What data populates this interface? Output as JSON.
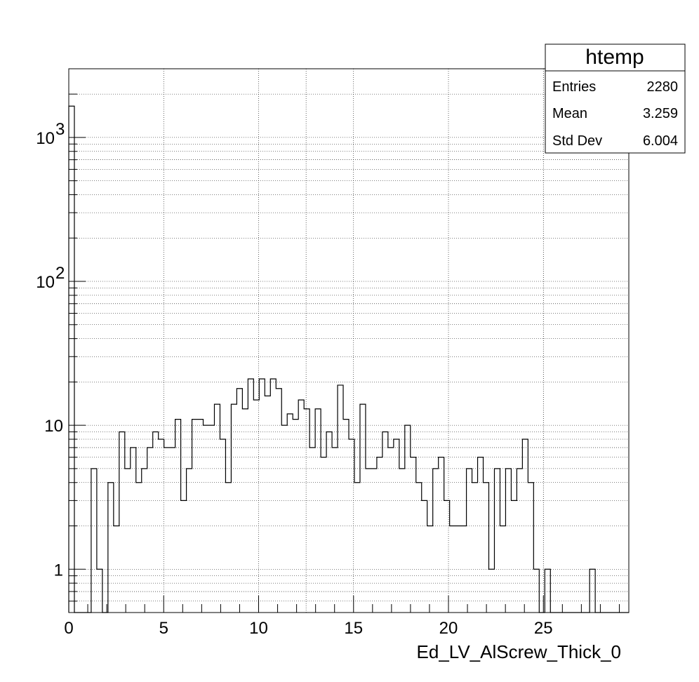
{
  "chart_data": {
    "type": "bar",
    "style": "step-histogram",
    "xlabel": "Ed_LV_AlScrew_Thick_0",
    "ylabel": "",
    "xlim": [
      0,
      29.5
    ],
    "ylim": [
      0.5,
      3000
    ],
    "log_y": true,
    "grid": true,
    "bin_width": 0.295,
    "x_ticks": [
      0,
      5,
      10,
      15,
      20,
      25
    ],
    "y_ticks": [
      {
        "value": 1,
        "label": "1"
      },
      {
        "value": 10,
        "label": "10"
      },
      {
        "value": 100,
        "label": "10",
        "exp": "2"
      },
      {
        "value": 1000,
        "label": "10",
        "exp": "3"
      }
    ],
    "values": [
      1650,
      0,
      0,
      0,
      5,
      1,
      0,
      4,
      2,
      9,
      5,
      7,
      4,
      5,
      7,
      9,
      8,
      7,
      7,
      11,
      3,
      5,
      11,
      11,
      10,
      10,
      14,
      8,
      4,
      14,
      18,
      13,
      21,
      15,
      21,
      16,
      21,
      18,
      10,
      12,
      11,
      15,
      13,
      7,
      13,
      6,
      9,
      7,
      19,
      11,
      8,
      4,
      14,
      5,
      5,
      6,
      9,
      7,
      8,
      5,
      10,
      6,
      4,
      3,
      2,
      5,
      6,
      3,
      2,
      2,
      2,
      5,
      4,
      6,
      4,
      1,
      5,
      2,
      5,
      3,
      5,
      8,
      4,
      1,
      0,
      1,
      0,
      0,
      0,
      0,
      0,
      0,
      0,
      1,
      0,
      0,
      0,
      0,
      0,
      0
    ],
    "stats": {
      "title": "htemp",
      "rows": [
        {
          "label": "Entries",
          "value": "2280"
        },
        {
          "label": "Mean",
          "value": "3.259"
        },
        {
          "label": "Std Dev",
          "value": "6.004"
        }
      ]
    }
  }
}
